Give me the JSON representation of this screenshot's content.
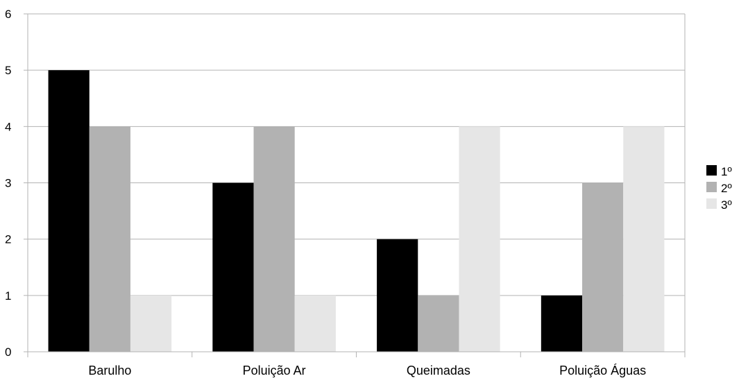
{
  "chart_data": {
    "type": "bar",
    "categories": [
      "Barulho",
      "Poluição Ar",
      "Queimadas",
      "Poluição Águas"
    ],
    "series": [
      {
        "name": "1º",
        "values": [
          5,
          3,
          2,
          1
        ],
        "color": "#000000"
      },
      {
        "name": "2º",
        "values": [
          4,
          4,
          1,
          3
        ],
        "color": "#b2b2b2"
      },
      {
        "name": "3º",
        "values": [
          1,
          1,
          4,
          4
        ],
        "color": "#e6e6e6"
      }
    ],
    "yticks": [
      "0",
      "1",
      "2",
      "3",
      "4",
      "5",
      "6"
    ],
    "ylim": [
      0,
      6
    ],
    "grid": true,
    "legend_position": "right",
    "title": "",
    "xlabel": "",
    "ylabel": ""
  }
}
